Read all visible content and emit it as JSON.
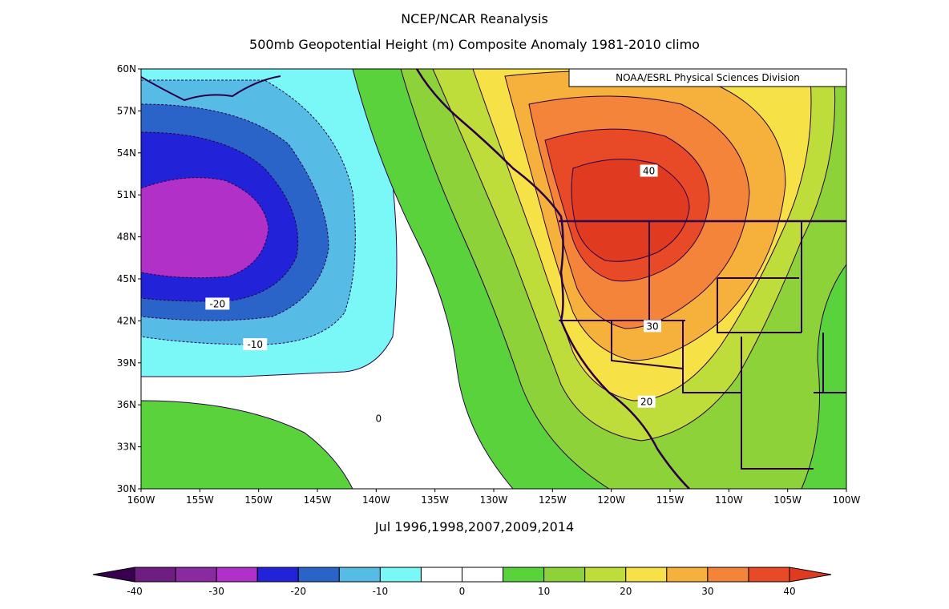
{
  "header": {
    "title": "NCEP/NCAR Reanalysis",
    "subtitle": "500mb Geopotential Height (m) Composite Anomaly 1981-2010 climo"
  },
  "map": {
    "credit": "NOAA/ESRL Physical Sciences Division",
    "lon_range": [
      -160,
      -100
    ],
    "lat_range": [
      30,
      60
    ],
    "lat_labels": [
      "60N",
      "57N",
      "54N",
      "51N",
      "48N",
      "45N",
      "42N",
      "39N",
      "36N",
      "33N",
      "30N"
    ],
    "lon_labels": [
      "160W",
      "155W",
      "150W",
      "145W",
      "140W",
      "135W",
      "130W",
      "125W",
      "120W",
      "115W",
      "110W",
      "105W",
      "100W"
    ],
    "contour_labels": [
      {
        "text": "-20",
        "lon": -153.5,
        "lat": 43.2
      },
      {
        "text": "-10",
        "lon": -150.3,
        "lat": 40.3
      },
      {
        "text": "0",
        "lon": -139.8,
        "lat": 35.0
      },
      {
        "text": "40",
        "lon": -116.8,
        "lat": 52.7
      },
      {
        "text": "30",
        "lon": -116.5,
        "lat": 41.6
      },
      {
        "text": "20",
        "lon": -117.0,
        "lat": 36.2
      }
    ]
  },
  "dates": "Jul 1996,1998,2007,2009,2014",
  "colorbar": {
    "tick_labels": [
      "-40",
      "-30",
      "-20",
      "-10",
      "0",
      "10",
      "20",
      "30",
      "40"
    ],
    "colors": [
      "#3a0050",
      "#6e1d80",
      "#8a2aa0",
      "#b030c8",
      "#2222d8",
      "#2a64c8",
      "#56bce6",
      "#7af8f8",
      "#ffffff",
      "#ffffff",
      "#5ad23c",
      "#8ed23a",
      "#bedc3a",
      "#f6e146",
      "#f6b03c",
      "#f4843a",
      "#e84a28",
      "#e03a20"
    ]
  }
}
